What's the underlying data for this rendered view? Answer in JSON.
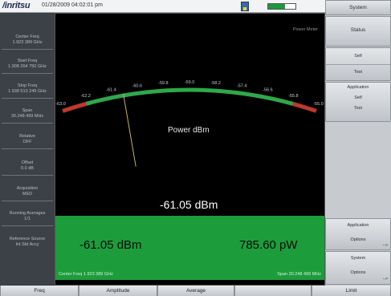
{
  "topbar": {
    "brand": "/inritsu",
    "datetime": "01/28/2009 04:02:01 pm",
    "battery_level": 0.62
  },
  "left_panel": [
    {
      "label": "Center Freq",
      "value": "1.923 389 GHz"
    },
    {
      "label": "Start Freq",
      "value": "1.908 264 750 GHz"
    },
    {
      "label": "Stop Freq",
      "value": "1.938 513 249 GHz"
    },
    {
      "label": "Span",
      "value": "30.248 499 MHz"
    },
    {
      "label": "Relative",
      "value": "OFF"
    },
    {
      "label": "Offset",
      "value": "0.0 dB"
    },
    {
      "label": "Acquisition",
      "value": "MED"
    },
    {
      "label": "Running Averages",
      "value": "1/1"
    },
    {
      "label": "Reference Source",
      "value": "Int Std Accy"
    }
  ],
  "display": {
    "mode": "Power Meter",
    "caption": "Power dBm",
    "reading": "-61.05 dBm",
    "reading_dbm": "-61.05 dBm",
    "reading_pw": "785.60 pW",
    "center_footer": "Center Freq 1.923 389 GHz",
    "span_footer": "Span 30.248 499 MHz",
    "scale_ticks": [
      "-63.0",
      "-62.2",
      "-61.4",
      "-60.6",
      "-59.8",
      "-59.0",
      "-58.2",
      "-57.4",
      "-56.6",
      "-55.8",
      "-55.0"
    ],
    "scale_min": -63.0,
    "scale_max": -55.0,
    "needle_value": -61.05,
    "colors": {
      "arc_green": "#2ea84a",
      "arc_red": "#c0392b",
      "needle": "#c9b65a",
      "box_green": "#1d9c3c"
    }
  },
  "right_keys": {
    "system": "System",
    "status": "Status",
    "self_test_line1": "Self",
    "self_test_line2": "Test",
    "app_self_test_line1": "Application",
    "app_self_test_line2": "Self",
    "app_self_test_line3": "Test",
    "app_options_line1": "Application",
    "app_options_line2": "Options",
    "sys_options_line1": "System",
    "sys_options_line2": "Options",
    "arrow": "-->"
  },
  "bottom_menu": [
    "Freq",
    "Amplitude",
    "Average",
    "",
    "Limit"
  ]
}
